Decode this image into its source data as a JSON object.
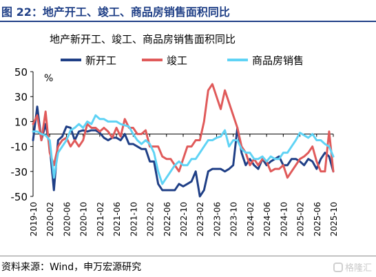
{
  "figure_title": "图 22：地产开工、竣工、商品房销售面积同比",
  "source": "资料来源：Wind，申万宏源研究",
  "watermark": "格隆汇",
  "chart_data": {
    "type": "line",
    "title": "地产新开工、竣工、商品房销售面积同比",
    "ylabel": "%",
    "ylim": [
      -50,
      50
    ],
    "yticks": [
      -50,
      -30,
      -10,
      10,
      30,
      50
    ],
    "grid": false,
    "zero_line": true,
    "legend_position": "top",
    "x_tick_labels": [
      "2019-10",
      "2020-02",
      "2020-06",
      "2020-10",
      "2021-02",
      "2021-06",
      "2021-10",
      "2022-02",
      "2022-06",
      "2022-10",
      "2023-02",
      "2023-06",
      "2023-10",
      "2024-02",
      "2024-06",
      "2024-10",
      "2025-02",
      "2025-06",
      "2025-10"
    ],
    "x": [
      "2019-10",
      "2019-11",
      "2019-12",
      "2020-01",
      "2020-02",
      "2020-03",
      "2020-04",
      "2020-05",
      "2020-06",
      "2020-07",
      "2020-08",
      "2020-09",
      "2020-10",
      "2020-11",
      "2020-12",
      "2021-01",
      "2021-02",
      "2021-03",
      "2021-04",
      "2021-05",
      "2021-06",
      "2021-07",
      "2021-08",
      "2021-09",
      "2021-10",
      "2021-11",
      "2021-12",
      "2022-01",
      "2022-02",
      "2022-03",
      "2022-04",
      "2022-05",
      "2022-06",
      "2022-07",
      "2022-08",
      "2022-09",
      "2022-10",
      "2022-11",
      "2022-12",
      "2023-01",
      "2023-02",
      "2023-03",
      "2023-04",
      "2023-05",
      "2023-06",
      "2023-07",
      "2023-08",
      "2023-09",
      "2023-10",
      "2023-11",
      "2023-12",
      "2024-01",
      "2024-02",
      "2024-03",
      "2024-04",
      "2024-05",
      "2024-06",
      "2024-07",
      "2024-08",
      "2024-09",
      "2024-10",
      "2024-11",
      "2024-12",
      "2025-01",
      "2025-02",
      "2025-03",
      "2025-04",
      "2025-05",
      "2025-06",
      "2025-07",
      "2025-08",
      "2025-09",
      "2025-10"
    ],
    "series": [
      {
        "name": "新开工",
        "color": "#1f3f86",
        "width": 3.0,
        "values": [
          -5,
          22,
          -5,
          8,
          -10,
          -45,
          -5,
          -2,
          6,
          5,
          -5,
          2,
          3,
          2,
          3,
          3,
          1,
          -3,
          -5,
          -3,
          -3,
          -5,
          0,
          -8,
          -8,
          -10,
          -12,
          -12,
          -22,
          -22,
          -40,
          -45,
          -45,
          -45,
          -45,
          -40,
          -42,
          -40,
          -38,
          -30,
          -50,
          -45,
          -30,
          -28,
          -28,
          -28,
          -30,
          -28,
          -25,
          5,
          -15,
          -25,
          -20,
          -25,
          -28,
          -20,
          -25,
          -22,
          -20,
          -18,
          -25,
          -25,
          -20,
          -20,
          -22,
          -25,
          -20,
          -22,
          -28,
          -20,
          -15,
          -18,
          -30
        ]
      },
      {
        "name": "竣工",
        "color": "#e05a5a",
        "width": 3.0,
        "values": [
          8,
          15,
          -5,
          18,
          -15,
          -25,
          -10,
          -5,
          -3,
          -10,
          -5,
          -10,
          -5,
          8,
          5,
          5,
          2,
          5,
          2,
          -3,
          5,
          -2,
          12,
          5,
          5,
          0,
          0,
          3,
          -10,
          -10,
          -10,
          -18,
          -20,
          -20,
          -25,
          -30,
          -20,
          -10,
          -10,
          -5,
          -5,
          10,
          35,
          40,
          30,
          20,
          35,
          25,
          15,
          5,
          -10,
          -15,
          -25,
          -20,
          -25,
          -20,
          -22,
          -30,
          -28,
          -28,
          -25,
          -35,
          -30,
          -25,
          -20,
          -18,
          -15,
          -10,
          -22,
          -30,
          -30,
          2,
          -30
        ]
      },
      {
        "name": "商品房销售",
        "color": "#5fd3f5",
        "width": 3.0,
        "values": [
          2,
          2,
          0,
          -1,
          -5,
          -35,
          -15,
          -10,
          -5,
          3,
          5,
          8,
          5,
          10,
          8,
          15,
          12,
          12,
          10,
          10,
          10,
          8,
          7,
          6,
          0,
          -5,
          -8,
          -5,
          -8,
          -15,
          -30,
          -40,
          -35,
          -30,
          -25,
          -22,
          -25,
          -25,
          -20,
          -20,
          -15,
          -10,
          -5,
          -5,
          -3,
          -2,
          3,
          -10,
          -5,
          -5,
          -12,
          -15,
          -15,
          -20,
          -20,
          -18,
          -22,
          -18,
          -20,
          -20,
          -15,
          -15,
          -10,
          -5,
          1,
          -1,
          -3,
          0,
          -5,
          -5,
          -8,
          -10,
          -18
        ]
      }
    ]
  }
}
